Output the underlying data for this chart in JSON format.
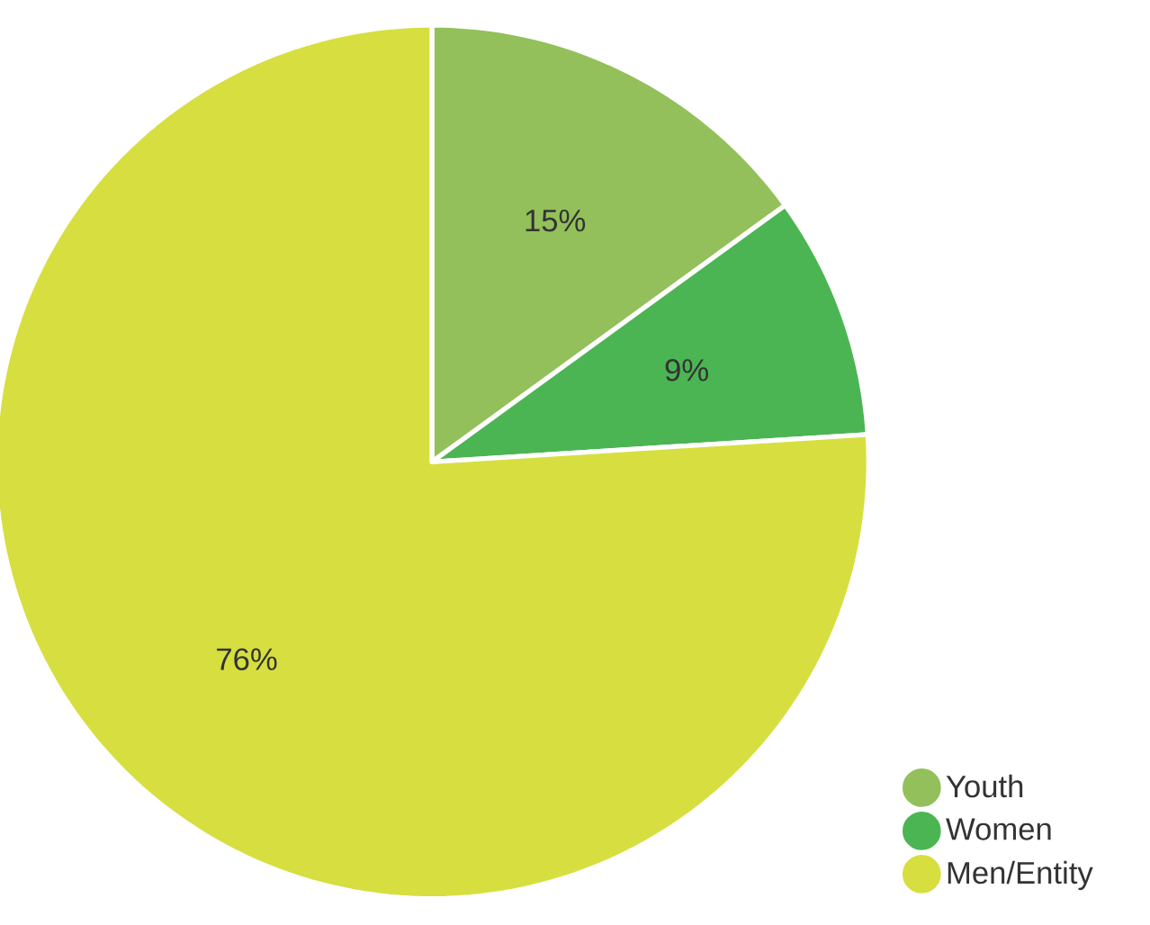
{
  "chart_data": {
    "type": "pie",
    "categories": [
      "Youth",
      "Women",
      "Men/Entity"
    ],
    "values": [
      15,
      9,
      76
    ],
    "colors": [
      "#93c05a",
      "#4cb553",
      "#d6df3f"
    ],
    "value_labels": [
      "15%",
      "9%",
      "76%"
    ],
    "legend": "bottom right"
  }
}
